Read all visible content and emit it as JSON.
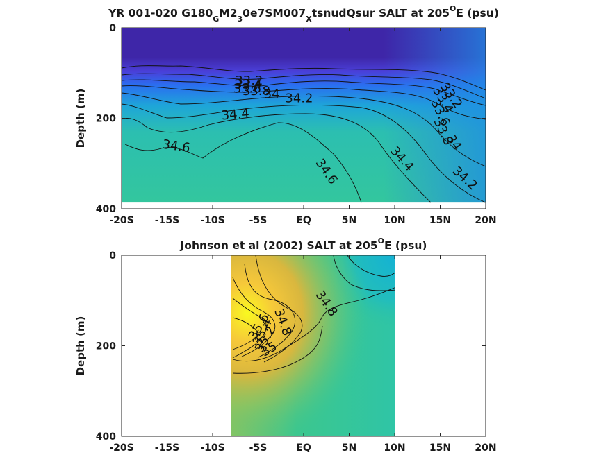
{
  "chart_data": [
    {
      "type": "heatmap",
      "title": {
        "pre": "YR 001-020 G180",
        "s1": "G",
        "m1": "M2",
        "s2": "3",
        "m2": "0e7SM007",
        "s3": "X",
        "m3": "tsnudQsur SALT at 205",
        "deg": "O",
        "post": "E (psu)"
      },
      "ylabel": "Depth (m)",
      "x_ticks": [
        "-20S",
        "-15S",
        "-10S",
        "-5S",
        "EQ",
        "5N",
        "10N",
        "15N",
        "20N"
      ],
      "x_tick_values": [
        -20,
        -15,
        -10,
        -5,
        0,
        5,
        10,
        15,
        20
      ],
      "y_ticks": [
        "0",
        "200",
        "400"
      ],
      "y_tick_values": [
        0,
        200,
        400
      ],
      "xlim": [
        -20,
        20
      ],
      "ylim": [
        400,
        0
      ],
      "data_extent": {
        "x": [
          -20,
          20
        ],
        "depth": [
          0,
          385
        ]
      },
      "contour_labels": [
        {
          "text": "33.2",
          "lat": -6.0,
          "depth": 117,
          "angle": 0
        },
        {
          "text": "33.4",
          "lat": -6.1,
          "depth": 126,
          "angle": 0
        },
        {
          "text": "33.6",
          "lat": -6.2,
          "depth": 135,
          "angle": 0
        },
        {
          "text": "33.8",
          "lat": -5.2,
          "depth": 140,
          "angle": 0
        },
        {
          "text": "34",
          "lat": -3.5,
          "depth": 147,
          "angle": 0
        },
        {
          "text": "34.2",
          "lat": -0.5,
          "depth": 156,
          "angle": 0
        },
        {
          "text": "34.4",
          "lat": -7.5,
          "depth": 192,
          "angle": -5
        },
        {
          "text": "34.6",
          "lat": -14.0,
          "depth": 262,
          "angle": 8
        },
        {
          "text": "34.6",
          "lat": 2.5,
          "depth": 318,
          "angle": 55
        },
        {
          "text": "34.4",
          "lat": 10.8,
          "depth": 290,
          "angle": 48
        },
        {
          "text": "34.2",
          "lat": 17.7,
          "depth": 333,
          "angle": 42
        },
        {
          "text": "34",
          "lat": 16.5,
          "depth": 254,
          "angle": 55
        },
        {
          "text": "33.8",
          "lat": 15.3,
          "depth": 230,
          "angle": 65
        },
        {
          "text": "33.6",
          "lat": 15.0,
          "depth": 188,
          "angle": 65
        },
        {
          "text": "33.4",
          "lat": 15.3,
          "depth": 160,
          "angle": 60
        },
        {
          "text": "33.2",
          "lat": 16.2,
          "depth": 150,
          "angle": 55
        }
      ]
    },
    {
      "type": "heatmap",
      "title": {
        "pre": "Johnson et al (2002) SALT at 205",
        "deg": "O",
        "post": "E (psu)"
      },
      "ylabel": "Depth (m)",
      "x_ticks": [
        "-20S",
        "-15S",
        "-10S",
        "-5S",
        "EQ",
        "5N",
        "10N",
        "15N",
        "20N"
      ],
      "x_tick_values": [
        -20,
        -15,
        -10,
        -5,
        0,
        5,
        10,
        15,
        20
      ],
      "y_ticks": [
        "0",
        "200",
        "400"
      ],
      "y_tick_values": [
        0,
        200,
        400
      ],
      "xlim": [
        -20,
        20
      ],
      "ylim": [
        400,
        0
      ],
      "data_extent": {
        "x": [
          -8,
          10
        ],
        "depth": [
          0,
          400
        ]
      },
      "contour_labels": [
        {
          "text": "34.8",
          "lat": 2.5,
          "depth": 107,
          "angle": 55
        },
        {
          "text": "34.8",
          "lat": -2.3,
          "depth": 148,
          "angle": 70
        },
        {
          "text": "35",
          "lat": -3.8,
          "depth": 208,
          "angle": -30
        },
        {
          "text": "35.2",
          "lat": -4.2,
          "depth": 186,
          "angle": -60
        },
        {
          "text": "35.4",
          "lat": -4.5,
          "depth": 170,
          "angle": -65
        },
        {
          "text": "35.6",
          "lat": -4.9,
          "depth": 158,
          "angle": -60
        }
      ]
    }
  ]
}
